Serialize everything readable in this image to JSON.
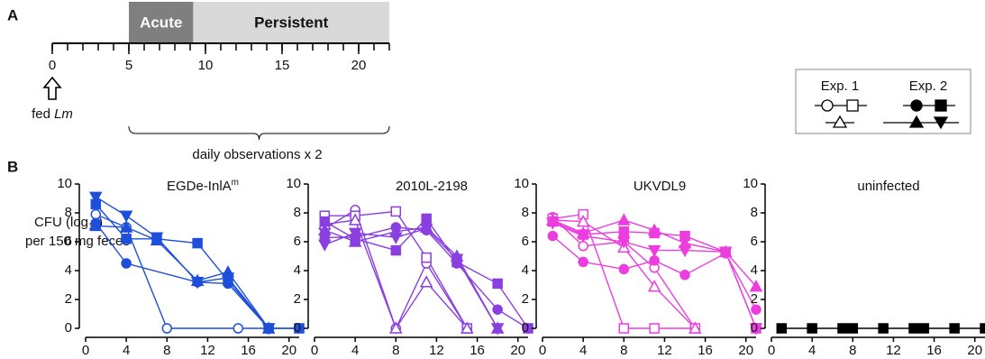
{
  "panel_a": {
    "letter": "A",
    "timeline": {
      "xlim": [
        0,
        22
      ],
      "minor_ticks": [
        0,
        1,
        2,
        3,
        4,
        5,
        6,
        7,
        8,
        9,
        10,
        11,
        12,
        13,
        14,
        15,
        16,
        17,
        18,
        19,
        20,
        21,
        22
      ],
      "xticks": [
        0,
        5,
        10,
        15,
        20
      ]
    },
    "phases": [
      {
        "label": "Acute",
        "start": 5,
        "end": 9.2,
        "color": "#7f7f7f",
        "text_color": "#ffffff"
      },
      {
        "label": "Persistent",
        "start": 9.2,
        "end": 22,
        "color": "#d9d9d9",
        "text_color": "#111111"
      }
    ],
    "feeding": {
      "label": "fed ",
      "label_italic": "Lm",
      "day": 0
    },
    "observations": {
      "label": "daily observations x 2",
      "start": 5,
      "end": 22
    }
  },
  "legend": {
    "exp1": "Exp. 1",
    "exp2": "Exp. 2"
  },
  "panel_b": {
    "letter": "B",
    "ylabel_main": "CFU (log",
    "ylabel_sub": "10",
    "ylabel_close": ")",
    "ylabel_line2": "per 150 mg feces"
  },
  "chart_data": [
    {
      "type": "line",
      "title": "EGDe-InlA",
      "title_sup": "m",
      "color": "#1d4fdb",
      "xlim": [
        0,
        21
      ],
      "xticks": [
        0,
        4,
        8,
        12,
        16,
        20
      ],
      "ylim": [
        0,
        10
      ],
      "yticks": [
        0,
        2,
        4,
        6,
        8,
        10
      ],
      "series": [
        {
          "marker": "circle",
          "filled": false,
          "x": [
            1,
            4,
            8,
            15,
            18
          ],
          "values": [
            7.9,
            7.0,
            0,
            0,
            0
          ]
        },
        {
          "marker": "circle",
          "filled": true,
          "x": [
            1,
            4,
            11,
            14,
            18,
            21
          ],
          "values": [
            7.3,
            4.5,
            3.2,
            3.1,
            0,
            0
          ]
        },
        {
          "marker": "square",
          "filled": true,
          "x": [
            1,
            4,
            7,
            11,
            14,
            18,
            21
          ],
          "values": [
            8.6,
            6.2,
            6.2,
            5.9,
            3.3,
            0,
            0
          ]
        },
        {
          "marker": "triangle",
          "filled": true,
          "x": [
            1,
            4,
            7,
            11,
            14,
            18
          ],
          "values": [
            7.1,
            7.0,
            6.1,
            3.3,
            3.9,
            0
          ]
        },
        {
          "marker": "triangle-down",
          "filled": true,
          "x": [
            1,
            4,
            7,
            11,
            14,
            18
          ],
          "values": [
            9.1,
            7.8,
            6.3,
            3.2,
            3.5,
            0
          ]
        }
      ]
    },
    {
      "type": "line",
      "title": "2010L-2198",
      "color": "#8a3fe0",
      "xlim": [
        0,
        21
      ],
      "xticks": [
        0,
        4,
        8,
        12,
        16,
        20
      ],
      "ylim": [
        0,
        10
      ],
      "yticks": [
        0,
        2,
        4,
        6,
        8,
        10
      ],
      "series": [
        {
          "marker": "circle",
          "filled": false,
          "x": [
            1,
            4,
            8,
            11,
            15
          ],
          "values": [
            6.9,
            8.2,
            0,
            4.5,
            0
          ]
        },
        {
          "marker": "square",
          "filled": false,
          "x": [
            1,
            4,
            8,
            11,
            15
          ],
          "values": [
            7.8,
            7.8,
            8.1,
            4.9,
            0
          ]
        },
        {
          "marker": "triangle",
          "filled": false,
          "x": [
            1,
            4,
            8,
            11,
            15
          ],
          "values": [
            7.2,
            7.5,
            0,
            3.2,
            0
          ]
        },
        {
          "marker": "circle",
          "filled": true,
          "x": [
            1,
            4,
            8,
            11,
            14,
            18,
            21
          ],
          "values": [
            6.3,
            6.3,
            7.0,
            6.8,
            4.5,
            1.3,
            0
          ]
        },
        {
          "marker": "square",
          "filled": true,
          "x": [
            1,
            4,
            8,
            11,
            14,
            18,
            21
          ],
          "values": [
            7.4,
            6.2,
            5.4,
            7.6,
            4.6,
            3.1,
            0
          ]
        },
        {
          "marker": "triangle",
          "filled": true,
          "x": [
            1,
            4,
            8,
            11,
            14,
            18
          ],
          "values": [
            6.8,
            6.0,
            6.7,
            7.0,
            5.0,
            0
          ]
        },
        {
          "marker": "triangle-down",
          "filled": true,
          "x": [
            1,
            4,
            8,
            11,
            14,
            18
          ],
          "values": [
            5.8,
            6.6,
            6.3,
            6.9,
            4.8,
            0
          ]
        }
      ]
    },
    {
      "type": "line",
      "title": "UKVDL9",
      "color": "#ec3ddf",
      "xlim": [
        0,
        21
      ],
      "xticks": [
        0,
        4,
        8,
        12,
        16,
        20
      ],
      "ylim": [
        0,
        10
      ],
      "yticks": [
        0,
        2,
        4,
        6,
        8,
        10
      ],
      "series": [
        {
          "marker": "circle",
          "filled": false,
          "x": [
            1,
            4,
            8,
            11,
            15
          ],
          "values": [
            7.7,
            5.7,
            6.0,
            4.2,
            0
          ]
        },
        {
          "marker": "square",
          "filled": false,
          "x": [
            1,
            4,
            8,
            11,
            15
          ],
          "values": [
            7.6,
            7.9,
            0,
            0,
            0
          ]
        },
        {
          "marker": "triangle",
          "filled": false,
          "x": [
            1,
            4,
            8,
            11,
            15
          ],
          "values": [
            7.5,
            7.4,
            5.6,
            2.9,
            0
          ]
        },
        {
          "marker": "circle",
          "filled": true,
          "x": [
            1,
            4,
            8,
            11,
            14,
            18,
            21
          ],
          "values": [
            6.4,
            4.6,
            4.1,
            4.7,
            3.7,
            5.2,
            1.3
          ]
        },
        {
          "marker": "square",
          "filled": true,
          "x": [
            1,
            4,
            8,
            11,
            14,
            18,
            21
          ],
          "values": [
            7.4,
            6.5,
            6.7,
            6.6,
            6.4,
            5.3,
            0
          ]
        },
        {
          "marker": "triangle",
          "filled": true,
          "x": [
            1,
            4,
            8,
            11,
            14,
            18,
            21
          ],
          "values": [
            7.5,
            6.6,
            7.5,
            6.8,
            5.9,
            5.3,
            2.9
          ]
        },
        {
          "marker": "triangle-down",
          "filled": true,
          "x": [
            1,
            4,
            8,
            11,
            14,
            18,
            21
          ],
          "values": [
            7.3,
            6.4,
            6.0,
            5.4,
            5.4,
            5.3,
            0
          ]
        }
      ]
    },
    {
      "type": "line",
      "title": "uninfected",
      "color": "#000000",
      "xlim": [
        0,
        21
      ],
      "xticks": [
        0,
        4,
        8,
        12,
        16,
        20
      ],
      "ylim": [
        0,
        10
      ],
      "yticks": [
        0,
        2,
        4,
        6,
        8,
        10
      ],
      "series": [
        {
          "marker": "square",
          "filled": true,
          "x": [
            1,
            4,
            7,
            8,
            11,
            14,
            15,
            18,
            21
          ],
          "values": [
            0,
            0,
            0,
            0,
            0,
            0,
            0,
            0,
            0
          ]
        }
      ]
    }
  ]
}
